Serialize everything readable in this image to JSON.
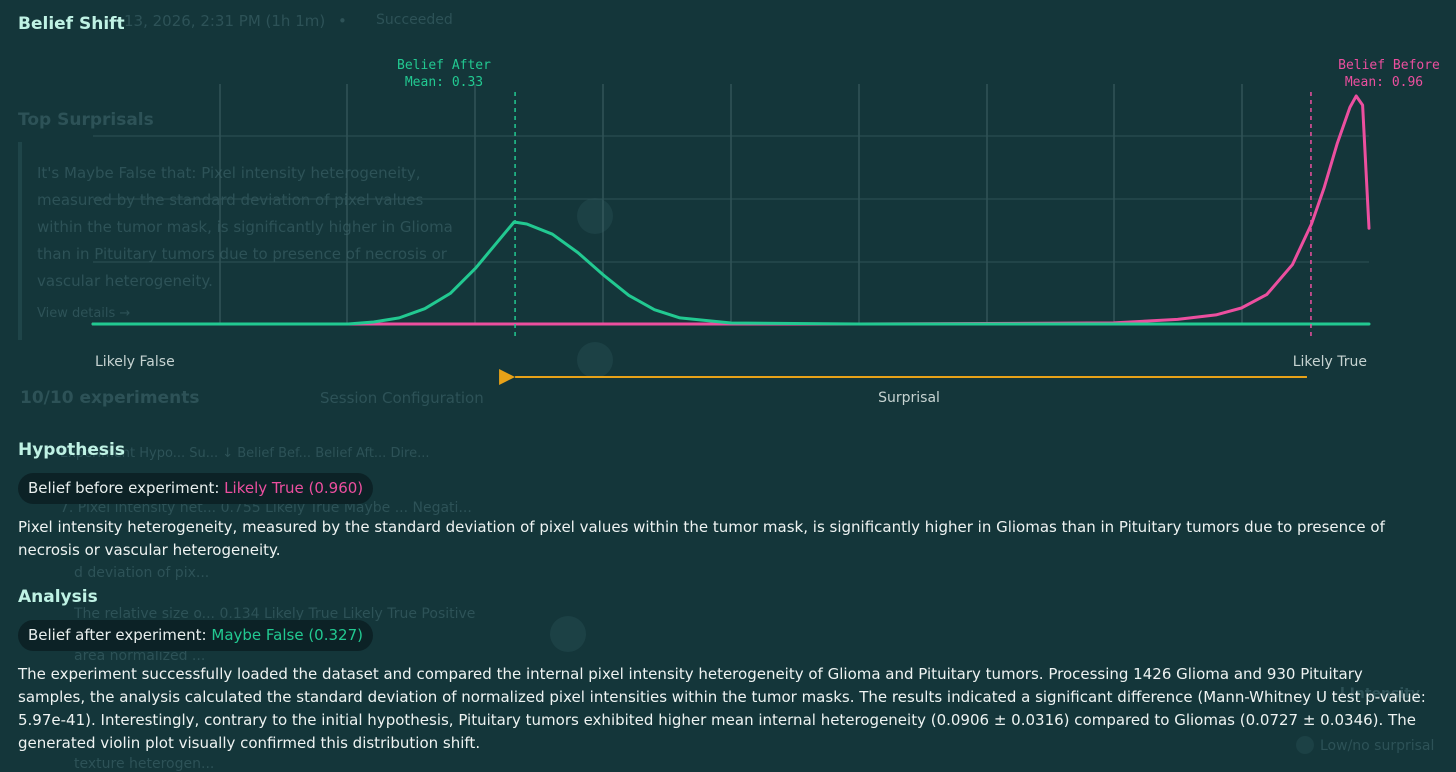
{
  "background_ghost": {
    "session_line": "13, 2026, 2:31 PM (1h 1m)",
    "session_bullet": "•",
    "status": "Succeeded",
    "top_surprisals": "Top Surprisals",
    "surprisal_text_1": "It's Maybe False that: Pixel intensity heterogeneity,",
    "surprisal_text_2": "measured by the standard deviation of pixel values",
    "surprisal_text_3": "within the tumor mask, is significantly higher in Glioma",
    "surprisal_text_4": "than in Pituitary tumors due to presence of necrosis or",
    "surprisal_text_5": "vascular heterogeneity.",
    "view_details": "View details →",
    "experiments_count": "10/10 experiments",
    "session_config": "Session Configuration",
    "table_header": "Experiment Hypo...   Su...   ↓   Belief Bef...   Belief Aft...   Dire...",
    "row_1": "7. Pixel intensity het...   0.755   Likely True   Maybe ...   Negati...",
    "row_2": "d deviation of pix...",
    "row_3": "The relative size o...   0.134   Likely True   Likely True   Positive",
    "row_4": "area normalized ...",
    "row_5": "texture heterogen...",
    "legend_1": "l Intensity",
    "legend_2": "Low/no surprisal"
  },
  "belief_shift": {
    "title": "Belief Shift",
    "after_label": "Belief After",
    "after_mean": "Mean: 0.33",
    "before_label": "Belief Before",
    "before_mean": "Mean: 0.96",
    "left_label": "Likely False",
    "right_label": "Likely True",
    "arrow_label": "Surprisal"
  },
  "chart_data": {
    "type": "line",
    "xlim": [
      0,
      1
    ],
    "grid": true,
    "series": [
      {
        "name": "Belief After",
        "color": "#22c991",
        "mean": 0.33,
        "x": [
          0.0,
          0.2,
          0.22,
          0.24,
          0.26,
          0.28,
          0.3,
          0.32,
          0.33,
          0.34,
          0.36,
          0.38,
          0.4,
          0.42,
          0.44,
          0.46,
          0.5,
          0.6,
          0.8,
          1.0
        ],
        "y": [
          0.0,
          0.0,
          0.02,
          0.06,
          0.15,
          0.3,
          0.55,
          0.85,
          1.0,
          0.98,
          0.88,
          0.7,
          0.48,
          0.28,
          0.14,
          0.06,
          0.01,
          0.0,
          0.0,
          0.0
        ]
      },
      {
        "name": "Belief Before",
        "color": "#ec4f9f",
        "mean": 0.96,
        "x": [
          0.0,
          0.6,
          0.8,
          0.85,
          0.88,
          0.9,
          0.92,
          0.94,
          0.955,
          0.965,
          0.975,
          0.985,
          0.99,
          0.995,
          1.0
        ],
        "y": [
          0.0,
          0.0,
          0.005,
          0.02,
          0.04,
          0.07,
          0.13,
          0.26,
          0.44,
          0.6,
          0.79,
          0.95,
          1.0,
          0.96,
          0.42
        ]
      }
    ],
    "peak_height": {
      "after": 0.45,
      "before": 1.0
    },
    "arrow": {
      "from": 0.96,
      "to": 0.33,
      "color": "#e8a218"
    }
  },
  "hypothesis": {
    "title": "Hypothesis",
    "belief_label": "Belief before experiment:",
    "belief_value": "Likely True (0.960)",
    "text": "Pixel intensity heterogeneity, measured by the standard deviation of pixel values within the tumor mask, is significantly higher in Gliomas than in Pituitary tumors due to presence of necrosis or vascular heterogeneity."
  },
  "analysis": {
    "title": "Analysis",
    "belief_label": "Belief after experiment:",
    "belief_value": "Maybe False (0.327)",
    "text": "The experiment successfully loaded the dataset and compared the internal pixel intensity heterogeneity of Glioma and Pituitary tumors. Processing 1426 Glioma and 930 Pituitary samples, the analysis calculated the standard deviation of normalized pixel intensities within the tumor masks. The results indicated a significant difference (Mann-Whitney U test p-value: 5.97e-41). Interestingly, contrary to the initial hypothesis, Pituitary tumors exhibited higher mean internal heterogeneity (0.0906 ± 0.0316) compared to Gliomas (0.0727 ± 0.0346). The generated violin plot visually confirmed this distribution shift."
  }
}
